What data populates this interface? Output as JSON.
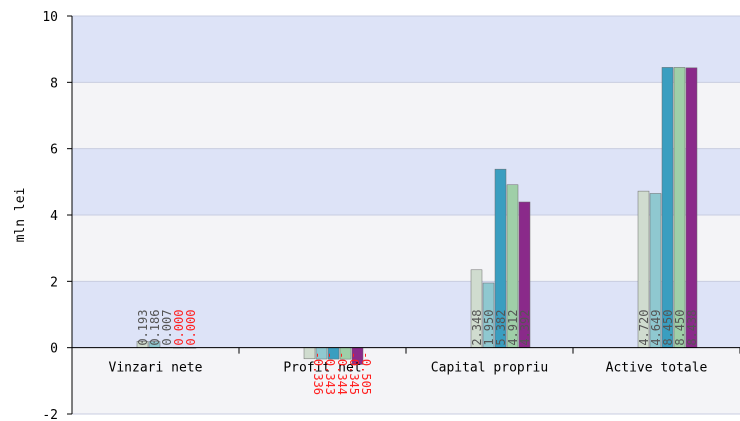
{
  "chart_data": {
    "type": "bar",
    "ylabel": "mln lei",
    "ylim": [
      -2,
      10
    ],
    "yticks": [
      -2,
      0,
      2,
      4,
      6,
      8,
      10
    ],
    "grid": true,
    "categories": [
      "Vinzari nete",
      "Profit net",
      "Capital propriu",
      "Active totale"
    ],
    "series": [
      {
        "color": "#d0dccf",
        "values": [
          0.193,
          -0.336,
          2.348,
          4.72
        ],
        "labels": [
          "0.193",
          "-0.336",
          "2.348",
          "4.720"
        ]
      },
      {
        "color": "#8fc8d0",
        "values": [
          0.186,
          -0.343,
          1.95,
          4.649
        ],
        "labels": [
          "0.186",
          "-0.343",
          "1.950",
          "4.649"
        ]
      },
      {
        "color": "#3a9ec0",
        "values": [
          0.007,
          -0.344,
          5.382,
          8.45
        ],
        "labels": [
          "0.007",
          "-0.344",
          "5.382",
          "8.450"
        ]
      },
      {
        "color": "#9fcfa8",
        "values": [
          0.0,
          -0.345,
          4.912,
          8.45
        ],
        "labels": [
          "0.000",
          "-0.345",
          "4.912",
          "8.450"
        ]
      },
      {
        "color": "#8a2a8a",
        "values": [
          0.0,
          -0.505,
          4.392,
          8.438
        ],
        "labels": [
          "0.000",
          "-0.505",
          "4.392",
          "8.438"
        ]
      }
    ]
  }
}
